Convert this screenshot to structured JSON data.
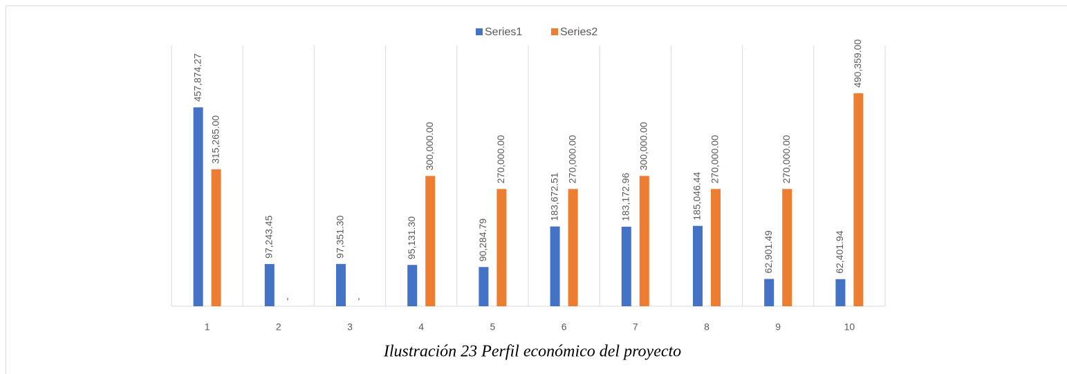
{
  "chart_data": {
    "type": "bar",
    "categories": [
      "1",
      "2",
      "3",
      "4",
      "5",
      "6",
      "7",
      "8",
      "9",
      "10"
    ],
    "series": [
      {
        "name": "Series1",
        "color": "#4472c4",
        "values": [
          457874.27,
          97243.45,
          97351.3,
          95131.3,
          90284.79,
          183672.51,
          183172.96,
          185046.44,
          62901.49,
          62401.94
        ],
        "value_labels": [
          "457,874.27",
          "97,243.45",
          "97,351.30",
          "95,131.30",
          "90,284.79",
          "183,672.51",
          "183,172.96",
          "185,046.44",
          "62,901.49",
          "62,401.94"
        ]
      },
      {
        "name": "Series2",
        "color": "#ed7d31",
        "values": [
          315265,
          0,
          0,
          300000,
          270000,
          270000,
          300000,
          270000,
          270000,
          490359
        ],
        "value_labels": [
          "315,265.00",
          "-",
          "-",
          "300,000.00",
          "270,000.00",
          "270,000.00",
          "300,000.00",
          "270,000.00",
          "270,000.00",
          "490,359.00"
        ]
      }
    ],
    "ylim": [
      0,
      600000
    ],
    "grid": true,
    "legend": "top",
    "caption": "Ilustración 23 Perfil económico del proyecto"
  }
}
